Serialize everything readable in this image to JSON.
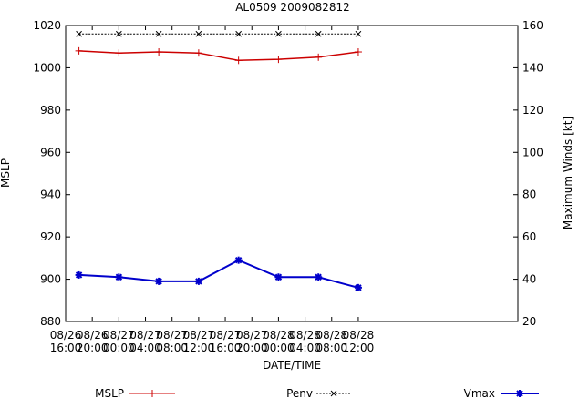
{
  "chart_data": {
    "type": "line",
    "title": "AL0509 2009082812",
    "xlabel": "DATE/TIME",
    "ylabel_left": "MSLP",
    "ylabel_right": "Maximum Winds [kt]",
    "ylim_left": [
      880,
      1020
    ],
    "ylim_right": [
      20,
      160
    ],
    "grid": false,
    "legend_position": "bottom",
    "x_ticks": [
      {
        "line1": "08/26",
        "line2": "16:00"
      },
      {
        "line1": "08/26",
        "line2": "20:00"
      },
      {
        "line1": "08/27",
        "line2": "00:00"
      },
      {
        "line1": "08/27",
        "line2": "04:00"
      },
      {
        "line1": "08/27",
        "line2": "08:00"
      },
      {
        "line1": "08/27",
        "line2": "12:00"
      },
      {
        "line1": "08/27",
        "line2": "16:00"
      },
      {
        "line1": "08/27",
        "line2": "20:00"
      },
      {
        "line1": "08/28",
        "line2": "00:00"
      },
      {
        "line1": "08/28",
        "line2": "04:00"
      },
      {
        "line1": "08/28",
        "line2": "08:00"
      },
      {
        "line1": "08/28",
        "line2": "12:00"
      }
    ],
    "y_ticks_left": [
      880,
      900,
      920,
      940,
      960,
      980,
      1000,
      1020
    ],
    "y_ticks_right": [
      20,
      40,
      60,
      80,
      100,
      120,
      140,
      160
    ],
    "x": [
      "08/26 18:00",
      "08/27 00:00",
      "08/27 06:00",
      "08/27 12:00",
      "08/27 18:00",
      "08/28 00:00",
      "08/28 06:00",
      "08/28 12:00"
    ],
    "series": [
      {
        "name": "MSLP",
        "axis": "left",
        "color": "#cc0000",
        "marker": "plus",
        "values": [
          1008,
          1007,
          1007.5,
          1007,
          1003.5,
          1004,
          1005,
          1007.5
        ]
      },
      {
        "name": "Penv",
        "axis": "left",
        "color": "#000000",
        "marker": "x",
        "dashed": true,
        "values": [
          1016,
          1016,
          1016,
          1016,
          1016,
          1016,
          1016,
          1016
        ]
      },
      {
        "name": "Vmax",
        "axis": "right",
        "color": "#0000cc",
        "marker": "star",
        "values": [
          42,
          41,
          39,
          39,
          49,
          41,
          41,
          36
        ]
      }
    ]
  }
}
